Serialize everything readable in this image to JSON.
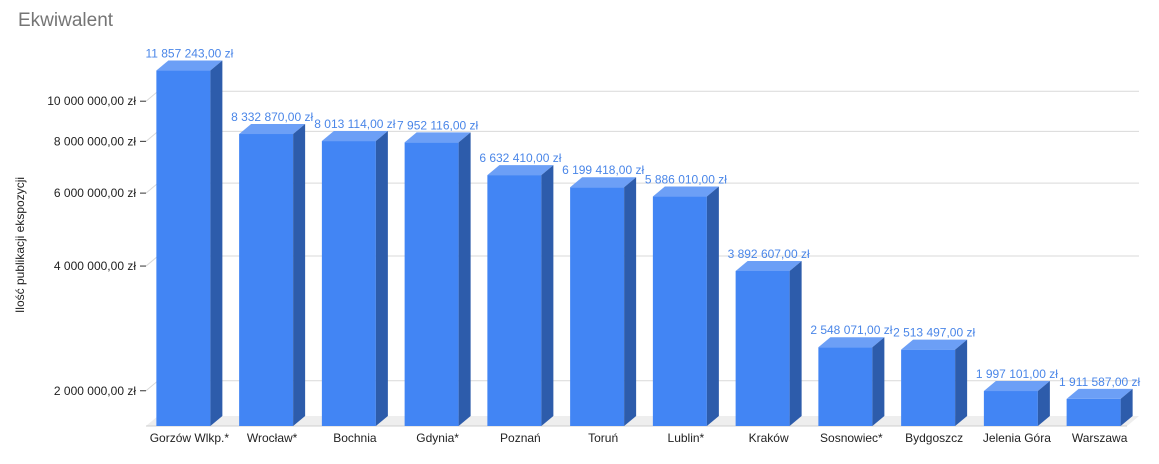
{
  "chart_data": {
    "type": "bar",
    "title": "Ekwiwalent",
    "ylabel": "Ilość publikacji ekspozycji",
    "xlabel": "",
    "yscale": "log",
    "ylim": [
      1700000,
      13000000
    ],
    "yticks": [
      2000000,
      4000000,
      6000000,
      8000000,
      10000000
    ],
    "ytick_labels": [
      "2 000 000,00 zł",
      "4 000 000,00 zł",
      "6 000 000,00 zł",
      "8 000 000,00 zł",
      "10 000 000,00 zł"
    ],
    "categories": [
      "Gorzów Wlkp.*",
      "Wrocław*",
      "Bochnia",
      "Gdynia*",
      "Poznań",
      "Toruń",
      "Lublin*",
      "Kraków",
      "Sosnowiec*",
      "Bydgoszcz",
      "Jelenia Góra",
      "Warszawa"
    ],
    "values": [
      11857243,
      8332870,
      8013114,
      7952116,
      6632410,
      6199418,
      5886010,
      3892607,
      2548071,
      2513497,
      1997101,
      1911587
    ],
    "data_labels": [
      "11 857 243,00 zł",
      "8 332 870,00 zł",
      "8 013 114,00 zł",
      "7 952 116,00 zł",
      "6 632 410,00 zł",
      "6 199 418,00 zł",
      "5 886 010,00 zł",
      "3 892 607,00 zł",
      "2 548 071,00 zł",
      "2 513 497,00 zł",
      "1 997 101,00 zł",
      "1 911 587,00 zł"
    ],
    "grid": true,
    "style": "3d",
    "colors": {
      "front": "#4285f4",
      "top": "#6c9ff6",
      "side": "#2d5cab",
      "label": "#4a86e8",
      "grid": "#d9d9d9"
    }
  }
}
